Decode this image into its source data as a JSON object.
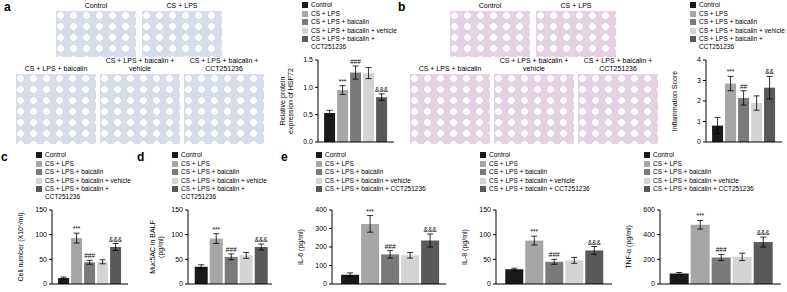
{
  "micrographs": [
    {
      "panel": "a",
      "labels": [
        "Control",
        "CS + LPS",
        "CS + LPS + baicalin",
        "CS + LPS + baicalin + vehicle",
        "CS + LPS + baicalin + CCT251236"
      ]
    },
    {
      "panel": "b",
      "labels": [
        "Control",
        "CS + LPS",
        "CS + LPS + baicalin",
        "CS + LPS + baicalin + vehicle",
        "CS + LPS + baicalin + CCT251236"
      ]
    }
  ],
  "chart_data": [
    {
      "type": "bar",
      "y_label": "Relative protein expression of HSP72",
      "categories": [
        null
      ],
      "ylim": [
        0,
        1.5
      ],
      "yticks": [
        {
          "value": 0,
          "label": "0.0"
        },
        {
          "value": 0.5,
          "label": "0.5"
        },
        {
          "value": 1,
          "label": "1.0"
        },
        {
          "value": 1.5,
          "label": "1.5"
        }
      ],
      "legend": "top",
      "tick_labels": "y",
      "series": [
        {
          "name": "Control",
          "color": "#1a1a1a",
          "values": [
            0.53
          ],
          "error": [
            0.05
          ]
        },
        {
          "name": "CS + LPS",
          "color": "#a6a6a6",
          "values": [
            0.95
          ],
          "error": [
            0.08
          ],
          "annotation": "***"
        },
        {
          "name": "CS + LPS + baicalin",
          "color": "#7a7a7a",
          "values": [
            1.27
          ],
          "error": [
            0.12
          ],
          "annotation": "###"
        },
        {
          "name": "CS + LPS + baicalin + vehicle",
          "color": "#d4d4d4",
          "values": [
            1.26
          ],
          "error": [
            0.1
          ]
        },
        {
          "name": "CS + LPS + baicalin + CCT251236",
          "color": "#595959",
          "values": [
            0.82
          ],
          "error": [
            0.06
          ],
          "annotation": "&&&"
        }
      ]
    },
    {
      "type": "bar",
      "y_label": "Inflammation Score",
      "categories": [
        null
      ],
      "ylim": [
        0,
        4
      ],
      "yticks": [
        0,
        1,
        2,
        3,
        4
      ],
      "legend": "top",
      "tick_labels": "y",
      "series": [
        {
          "name": "Control",
          "color": "#1a1a1a",
          "values": [
            0.8
          ],
          "error": [
            0.4
          ]
        },
        {
          "name": "CS + LPS",
          "color": "#a6a6a6",
          "values": [
            2.85
          ],
          "error": [
            0.35
          ],
          "annotation": "***"
        },
        {
          "name": "CS + LPS + baicalin",
          "color": "#7a7a7a",
          "values": [
            2.15
          ],
          "error": [
            0.35
          ],
          "annotation": "##"
        },
        {
          "name": "CS + LPS + baicalin + vehicle",
          "color": "#d4d4d4",
          "values": [
            1.9
          ],
          "error": [
            0.35
          ]
        },
        {
          "name": "CS + LPS + baicalin + CCT251236",
          "color": "#595959",
          "values": [
            2.65
          ],
          "error": [
            0.55
          ],
          "annotation": "&&"
        }
      ]
    },
    {
      "type": "bar",
      "panel": "c",
      "y_label": "Cell number (X10⁵/ml)",
      "categories": [
        null
      ],
      "ylim": [
        0,
        150
      ],
      "yticks": [
        0,
        50,
        100,
        150
      ],
      "legend": "top",
      "tick_labels": "y",
      "series": [
        {
          "name": "Control",
          "color": "#1a1a1a",
          "values": [
            12
          ],
          "error": [
            2
          ]
        },
        {
          "name": "CS + LPS",
          "color": "#a6a6a6",
          "values": [
            93
          ],
          "error": [
            10
          ],
          "annotation": "***"
        },
        {
          "name": "CS + LPS + baicalin",
          "color": "#7a7a7a",
          "values": [
            44
          ],
          "error": [
            4
          ],
          "annotation": "###"
        },
        {
          "name": "CS + LPS + baicalin + vehicle",
          "color": "#d4d4d4",
          "values": [
            45
          ],
          "error": [
            4
          ]
        },
        {
          "name": "CS + LPS + baicalin + CCT251236",
          "color": "#595959",
          "values": [
            75
          ],
          "error": [
            7
          ],
          "annotation": "&&&"
        }
      ]
    },
    {
      "type": "bar",
      "panel": "d",
      "y_label": "Muc5AC in BALF (pg/ml)",
      "categories": [
        null
      ],
      "ylim": [
        0,
        150
      ],
      "yticks": [
        0,
        50,
        100,
        150
      ],
      "legend": "top",
      "tick_labels": "y",
      "series": [
        {
          "name": "Control",
          "color": "#1a1a1a",
          "values": [
            35
          ],
          "error": [
            4
          ]
        },
        {
          "name": "CS + LPS",
          "color": "#a6a6a6",
          "values": [
            92
          ],
          "error": [
            10
          ],
          "annotation": "***"
        },
        {
          "name": "CS + LPS + baicalin",
          "color": "#7a7a7a",
          "values": [
            55
          ],
          "error": [
            6
          ],
          "annotation": "###"
        },
        {
          "name": "CS + LPS + baicalin + vehicle",
          "color": "#d4d4d4",
          "values": [
            58
          ],
          "error": [
            6
          ]
        },
        {
          "name": "CS + LPS + baicalin + CCT251236",
          "color": "#595959",
          "values": [
            75
          ],
          "error": [
            6
          ],
          "annotation": "&&&"
        }
      ]
    },
    {
      "type": "bar",
      "panel": "e",
      "y_label": "IL-6 (pg/ml)",
      "categories": [
        null
      ],
      "ylim": [
        0,
        400
      ],
      "yticks": [
        0,
        100,
        200,
        300,
        400
      ],
      "legend": "top",
      "tick_labels": "y",
      "series": [
        {
          "name": "Control",
          "color": "#1a1a1a",
          "values": [
            50
          ],
          "error": [
            10
          ]
        },
        {
          "name": "CS + LPS",
          "color": "#a6a6a6",
          "values": [
            325
          ],
          "error": [
            45
          ],
          "annotation": "***"
        },
        {
          "name": "CS + LPS + baicalin",
          "color": "#7a7a7a",
          "values": [
            160
          ],
          "error": [
            20
          ],
          "annotation": "###"
        },
        {
          "name": "CS + LPS + baicalin + vehicle",
          "color": "#d4d4d4",
          "values": [
            155
          ],
          "error": [
            15
          ]
        },
        {
          "name": "CS + LPS + baicalin + CCT251236",
          "color": "#595959",
          "values": [
            235
          ],
          "error": [
            35
          ],
          "annotation": "&&&"
        }
      ]
    },
    {
      "type": "bar",
      "y_label": "IL-8 (pg/ml)",
      "categories": [
        null
      ],
      "ylim": [
        0,
        150
      ],
      "yticks": [
        0,
        50,
        100,
        150
      ],
      "legend": "top",
      "tick_labels": "y",
      "series": [
        {
          "name": "Control",
          "color": "#1a1a1a",
          "values": [
            30
          ],
          "error": [
            2
          ]
        },
        {
          "name": "CS + LPS",
          "color": "#a6a6a6",
          "values": [
            88
          ],
          "error": [
            9
          ],
          "annotation": "***"
        },
        {
          "name": "CS + LPS + baicalin",
          "color": "#7a7a7a",
          "values": [
            45
          ],
          "error": [
            5
          ],
          "annotation": "###"
        },
        {
          "name": "CS + LPS + baicalin + vehicle",
          "color": "#d4d4d4",
          "values": [
            48
          ],
          "error": [
            6
          ]
        },
        {
          "name": "CS + LPS + baicalin + CCT251236",
          "color": "#595959",
          "values": [
            68
          ],
          "error": [
            8
          ],
          "annotation": "&&&"
        }
      ]
    },
    {
      "type": "bar",
      "y_label": "TNF-α (pg/ml)",
      "categories": [
        null
      ],
      "ylim": [
        0,
        600
      ],
      "yticks": [
        0,
        200,
        400,
        600
      ],
      "legend": "top",
      "tick_labels": "y",
      "series": [
        {
          "name": "Control",
          "color": "#1a1a1a",
          "values": [
            85
          ],
          "error": [
            8
          ]
        },
        {
          "name": "CS + LPS",
          "color": "#a6a6a6",
          "values": [
            480
          ],
          "error": [
            35
          ],
          "annotation": "***"
        },
        {
          "name": "CS + LPS + baicalin",
          "color": "#7a7a7a",
          "values": [
            215
          ],
          "error": [
            25
          ],
          "annotation": "###"
        },
        {
          "name": "CS + LPS + baicalin + vehicle",
          "color": "#d4d4d4",
          "values": [
            220
          ],
          "error": [
            30
          ]
        },
        {
          "name": "CS + LPS + baicalin + CCT251236",
          "color": "#595959",
          "values": [
            340
          ],
          "error": [
            40
          ],
          "annotation": "&&&"
        }
      ]
    }
  ]
}
